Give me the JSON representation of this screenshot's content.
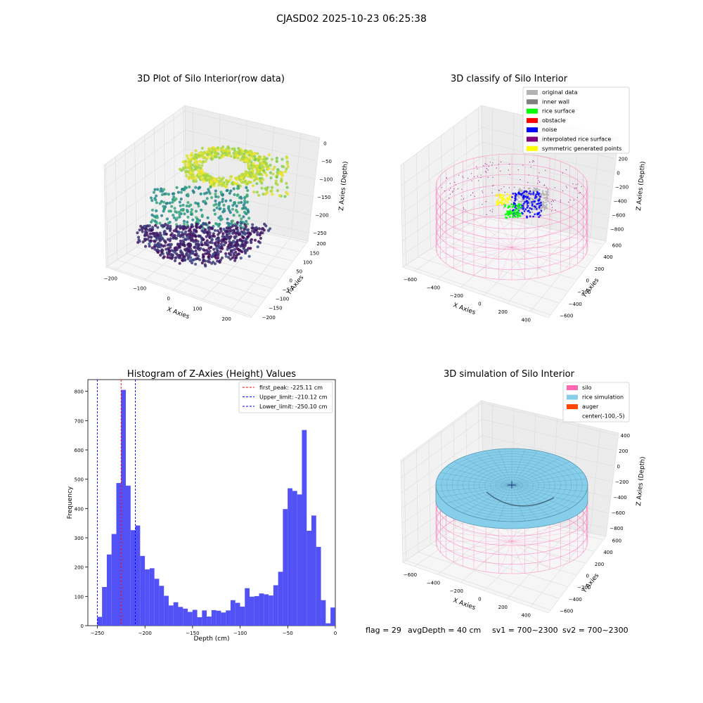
{
  "suptitle": "CJASD02 2025-10-23 06:25:38",
  "footer": {
    "flag": "flag = 29",
    "avg_depth": "avgDepth = 40 cm",
    "sv1": "sv1 = 700~2300",
    "sv2": "sv2 = 700~2300"
  },
  "colors": {
    "hist_bar": "#5151f5",
    "peak_line": "#ff0000",
    "limit_line": "#0000ff",
    "silo": "#ff69b4",
    "rice": "#87ceeb",
    "auger": "#ff4500",
    "original": "#b3b3b3",
    "inner_wall": "#808080",
    "rice_surface": "#00ff00",
    "obstacle": "#ff0000",
    "noise": "#0000ff",
    "interpolated": "#800080",
    "symmetric": "#ffff00"
  },
  "chart_data": [
    {
      "type": "scatter",
      "title": "3D Plot of Silo Interior(row data)",
      "xlabel": "X Axies",
      "ylabel": "Y Axies",
      "zlabel": "Z Axies (Depth)",
      "x_ticks": [
        "−200",
        "−100",
        "0",
        "100",
        "200"
      ],
      "y_ticks": [
        "200",
        "150",
        "100",
        "50",
        "0",
        "−50",
        "−100",
        "−150",
        "−200"
      ],
      "z_ticks": [
        "0",
        "−50",
        "−100",
        "−150",
        "−200",
        "−250"
      ],
      "xlim": [
        -230,
        260
      ],
      "ylim": [
        -200,
        200
      ],
      "zlim": [
        -265,
        0
      ],
      "colormap": "viridis"
    },
    {
      "type": "scatter",
      "title": "3D classify of Silo Interior",
      "xlabel": "X Axies",
      "ylabel": "Y Axies",
      "zlabel": "Z Axies (Depth)",
      "x_ticks": [
        "−600",
        "−400",
        "−200",
        "0",
        "200",
        "400"
      ],
      "y_ticks": [
        "600",
        "400",
        "200",
        "0",
        "−200",
        "−400",
        "−600"
      ],
      "z_ticks": [
        "200",
        "0",
        "−200",
        "−400",
        "−600",
        "−800"
      ],
      "legend": [
        "original data",
        "inner wall",
        "rice surface",
        "obstacle",
        "noise",
        "interpolated rice surface",
        "symmetric generated points"
      ],
      "legend_loc": "top-right"
    },
    {
      "type": "bar",
      "title": "Histogram of Z-Axies (Height) Values",
      "xlabel": "Depth (cm)",
      "ylabel": "Frequency",
      "xlim": [
        -260,
        0
      ],
      "ylim": [
        0,
        840
      ],
      "x_ticks": [
        "−250",
        "−200",
        "−150",
        "−100",
        "−50",
        "0"
      ],
      "x_tick_values": [
        -250,
        -200,
        -150,
        -100,
        -50,
        0
      ],
      "y_ticks": [
        "0",
        "100",
        "200",
        "300",
        "400",
        "500",
        "600",
        "700",
        "800"
      ],
      "y_tick_values": [
        0,
        100,
        200,
        300,
        400,
        500,
        600,
        700,
        800
      ],
      "bin_start": -250.1,
      "bin_width": 5,
      "values": [
        30,
        132,
        243,
        313,
        487,
        805,
        478,
        326,
        342,
        238,
        192,
        196,
        160,
        136,
        102,
        69,
        80,
        64,
        58,
        47,
        54,
        29,
        52,
        31,
        53,
        51,
        45,
        52,
        87,
        78,
        65,
        128,
        99,
        101,
        110,
        107,
        103,
        138,
        184,
        398,
        469,
        460,
        448,
        668,
        324,
        376,
        269,
        87,
        8,
        62
      ],
      "lines": [
        {
          "x": -225.11,
          "color": "#ff0000",
          "label": "first_peak: -225.11 cm"
        },
        {
          "x": -210.12,
          "color": "#0000ff",
          "label": "Upper_limit: -210.12 cm"
        },
        {
          "x": -250.1,
          "color": "#0000ff",
          "label": "Lower_limit: -250.10 cm"
        }
      ],
      "legend_loc": "top-right"
    },
    {
      "type": "surface",
      "title": "3D simulation of Silo Interior",
      "xlabel": "X Axies",
      "ylabel": "Y Axies",
      "zlabel": "Z Axies (Depth)",
      "x_ticks": [
        "−600",
        "−400",
        "−200",
        "0",
        "200",
        "400"
      ],
      "y_ticks": [
        "600",
        "400",
        "200",
        "0",
        "−200",
        "−400",
        "−600"
      ],
      "z_ticks": [
        "400",
        "200",
        "0",
        "−200",
        "−400",
        "−600",
        "−800"
      ],
      "legend": [
        "silo",
        "rice simulation",
        "auger",
        "center(-100,-5)"
      ],
      "legend_loc": "top-right"
    }
  ]
}
